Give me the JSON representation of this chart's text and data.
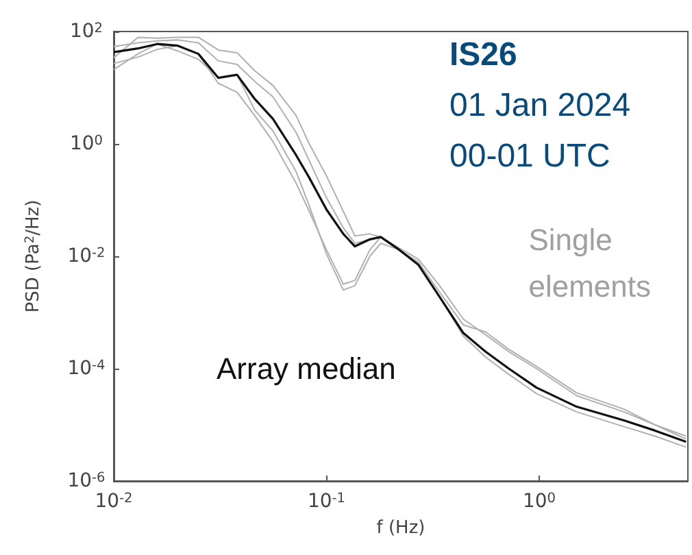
{
  "chart_data": {
    "type": "line",
    "xlabel": "f (Hz)",
    "ylabel": "PSD (Pa$^{2}$/Hz)",
    "annotations": [
      "IS26",
      "01 Jan 2024",
      "00-01 UTC"
    ],
    "x": [
      0.01,
      0.013,
      0.016,
      0.02,
      0.025,
      0.031,
      0.038,
      0.046,
      0.056,
      0.072,
      0.083,
      0.1,
      0.12,
      0.136,
      0.16,
      0.18,
      0.22,
      0.27,
      0.34,
      0.44,
      0.56,
      0.72,
      0.97,
      1.5,
      2.5,
      3.5,
      4.9
    ],
    "series": [
      {
        "name": "Single elements",
        "color": "#b0b0b0",
        "values": [
          54,
          63,
          68,
          71,
          63,
          30,
          26,
          13,
          6.9,
          1.6,
          0.5,
          0.11,
          0.032,
          0.017,
          0.02,
          0.022,
          0.014,
          0.0089,
          0.003,
          0.00076,
          0.0004,
          0.0002,
          0.0001,
          3.3e-05,
          1.7e-05,
          1e-05,
          6.3e-06
        ]
      },
      {
        "color": "#b0b0b0",
        "values": [
          27,
          35,
          48,
          56,
          40,
          12,
          8.3,
          3.2,
          1.1,
          0.2,
          0.063,
          0.013,
          0.0032,
          0.0037,
          0.013,
          0.022,
          0.013,
          0.0071,
          0.0019,
          0.00038,
          0.00016,
          7.9e-05,
          3.6e-05,
          1.7e-05,
          9.3e-06,
          6.3e-06,
          4e-06
        ]
      },
      {
        "color": "#b0b0b0",
        "values": [
          21,
          40,
          60,
          45,
          32,
          15,
          17,
          4,
          1.7,
          0.32,
          0.079,
          0.011,
          0.0025,
          0.003,
          0.01,
          0.017,
          0.013,
          0.0071,
          0.0019,
          0.00043,
          0.0002,
          0.0001,
          4.6e-05,
          2.1e-05,
          1.2e-05,
          7.9e-06,
          5e-06
        ]
      },
      {
        "color": "#b0b0b0",
        "values": [
          34,
          79,
          76,
          79,
          79,
          47,
          42,
          20,
          11,
          3.2,
          1,
          0.27,
          0.063,
          0.023,
          0.025,
          0.022,
          0.013,
          0.0079,
          0.0023,
          0.0006,
          0.00045,
          0.00022,
          0.00011,
          3.7e-05,
          1.9e-05,
          1e-05,
          5.6e-06
        ]
      },
      {
        "name": "Array median",
        "color": "#111111",
        "values": [
          43,
          50,
          60,
          56,
          40,
          15,
          17,
          6.3,
          2.8,
          0.63,
          0.25,
          0.068,
          0.025,
          0.015,
          0.02,
          0.022,
          0.013,
          0.0071,
          0.0019,
          0.00043,
          0.0002,
          0.0001,
          4.6e-05,
          2.1e-05,
          1.2e-05,
          7.9e-06,
          5e-06
        ]
      }
    ],
    "log": "xy",
    "xlim": [
      0.01,
      5
    ],
    "ylim": [
      1e-06,
      100
    ],
    "xticks": [
      {
        "value": 0.01,
        "label": "10$^{-2}$"
      },
      {
        "value": 0.1,
        "label": "10$^{-1}$"
      },
      {
        "value": 1,
        "label": "10$^{0}$"
      }
    ],
    "yticks": [
      {
        "value": 1e-06,
        "label": "10$^{-6}$"
      },
      {
        "value": 0.0001,
        "label": "10$^{-4}$"
      },
      {
        "value": 0.01,
        "label": "10$^{-2}$"
      },
      {
        "value": 1,
        "label": "10$^{0}$"
      },
      {
        "value": 100,
        "label": "10$^{2}$"
      }
    ],
    "grid": false,
    "legend": false,
    "marker": "none",
    "line_style": "solid"
  }
}
